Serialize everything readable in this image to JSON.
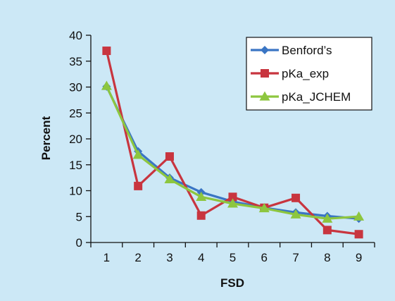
{
  "chart_data": {
    "type": "line",
    "xlabel": "FSD",
    "ylabel": "Percent",
    "x": [
      1,
      2,
      3,
      4,
      5,
      6,
      7,
      8,
      9
    ],
    "ylim": [
      0,
      40
    ],
    "yticks": [
      0,
      5,
      10,
      15,
      20,
      25,
      30,
      35,
      40
    ],
    "grid": false,
    "legend_position": "top-right",
    "series": [
      {
        "name": "Benford’s",
        "color": "#3a75c4",
        "marker": "diamond",
        "values": [
          30.1,
          17.6,
          12.5,
          9.7,
          7.9,
          6.7,
          5.8,
          5.1,
          4.6
        ]
      },
      {
        "name": "pKa_exp",
        "color": "#c8353f",
        "marker": "square",
        "values": [
          37.0,
          10.9,
          16.6,
          5.2,
          8.8,
          6.7,
          8.6,
          2.4,
          1.6
        ]
      },
      {
        "name": "pKa_JCHEM",
        "color": "#8dc63f",
        "marker": "triangle",
        "values": [
          30.2,
          16.9,
          12.2,
          8.8,
          7.5,
          6.6,
          5.4,
          4.6,
          5.0
        ]
      }
    ]
  }
}
